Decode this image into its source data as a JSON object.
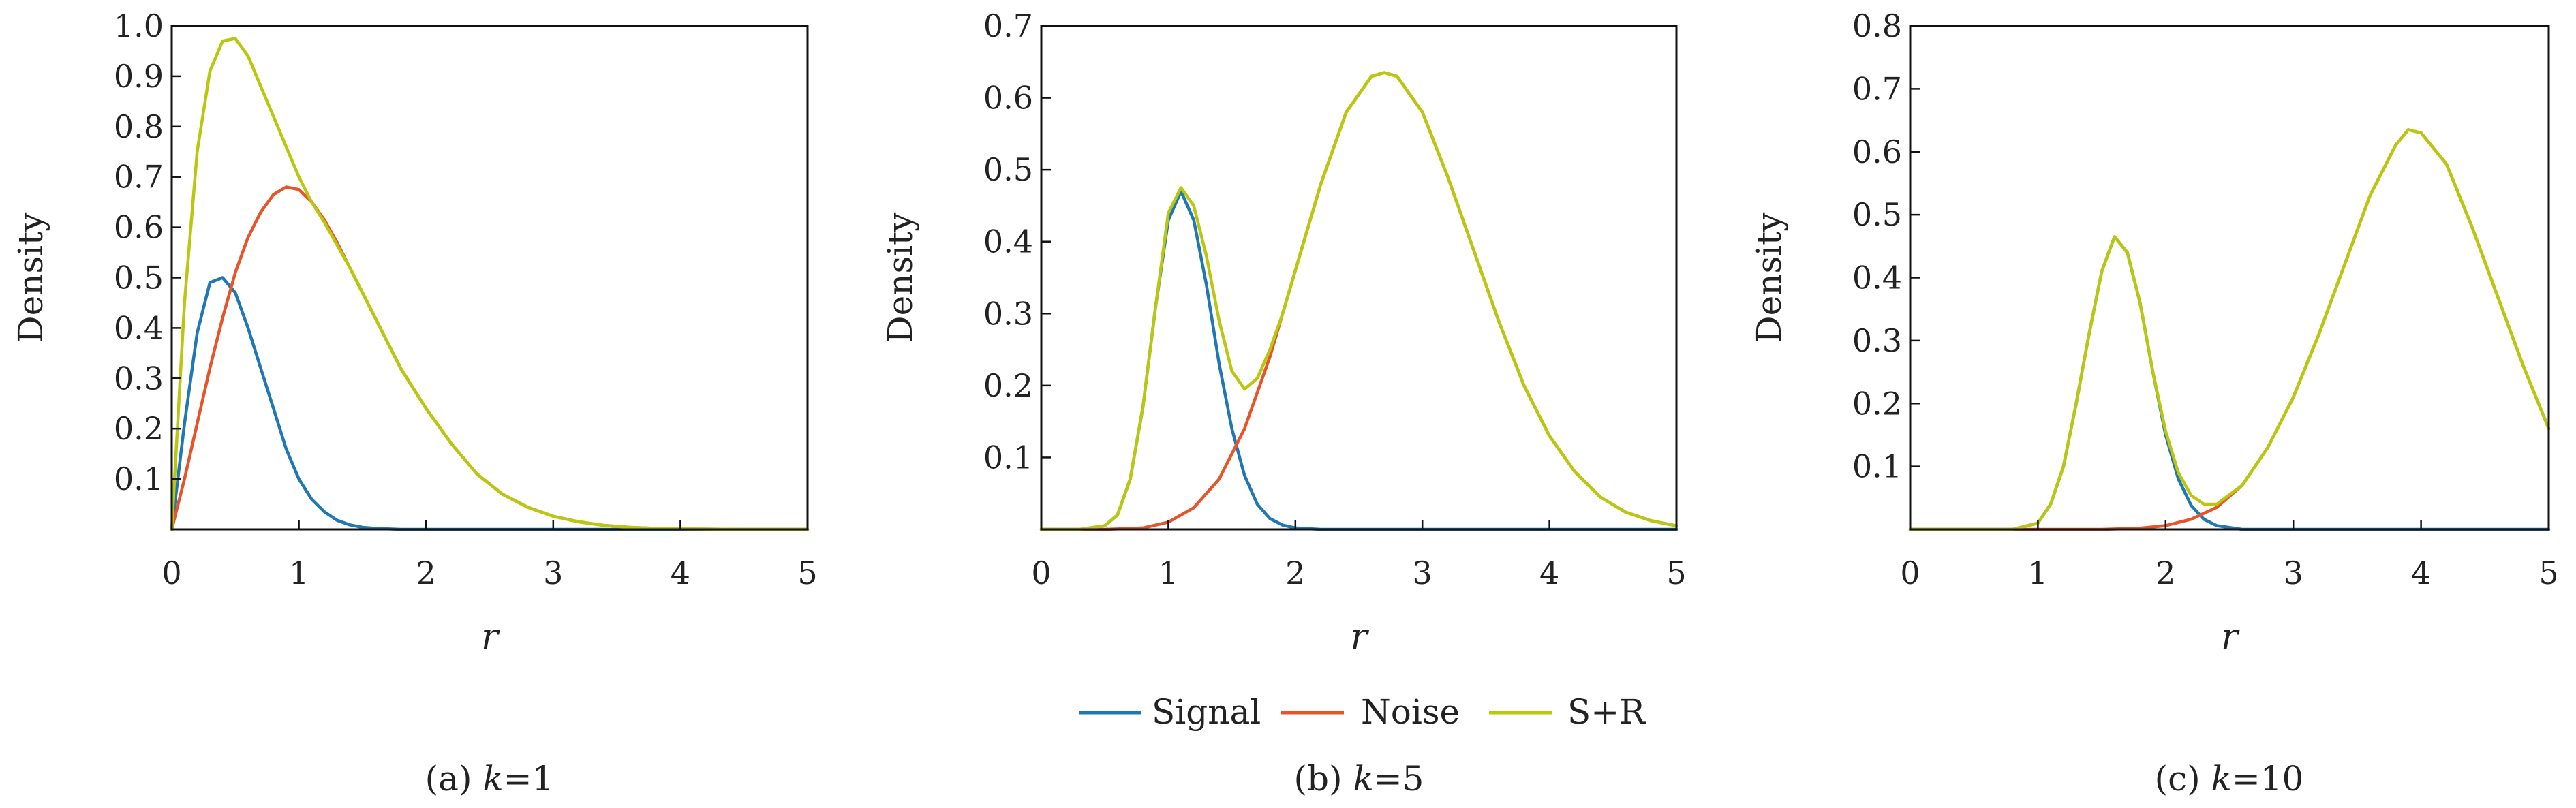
{
  "colors": {
    "signal": "#1f77b4",
    "noise": "#e8542a",
    "sr": "#b9c70f",
    "overlap": "#f0a020"
  },
  "legend": {
    "placement": "bottom-center",
    "entries": [
      {
        "label": "Signal",
        "color": "#1f77b4"
      },
      {
        "label": "Noise",
        "color": "#e8542a"
      },
      {
        "label": "S+R",
        "color": "#b9c70f"
      }
    ]
  },
  "chart_data": [
    {
      "type": "line",
      "caption_prefix": "(a)",
      "caption_var": "k",
      "caption_value": "=1",
      "xlabel": "r",
      "ylabel": "Density",
      "xlim": [
        0,
        5
      ],
      "ylim": [
        0,
        1.0
      ],
      "xticks": [
        "0",
        "1",
        "2",
        "3",
        "4",
        "5"
      ],
      "yticks": [
        "0.1",
        "0.2",
        "0.3",
        "0.4",
        "0.5",
        "0.6",
        "0.7",
        "0.8",
        "0.9",
        "1.0"
      ],
      "grid": false,
      "series": [
        {
          "name": "Signal",
          "x": [
            0,
            0.1,
            0.2,
            0.3,
            0.4,
            0.5,
            0.6,
            0.7,
            0.8,
            0.9,
            1.0,
            1.1,
            1.2,
            1.3,
            1.4,
            1.5,
            1.6,
            1.8,
            2.0,
            2.5,
            3,
            4,
            5
          ],
          "y": [
            0,
            0.21,
            0.39,
            0.49,
            0.5,
            0.47,
            0.4,
            0.32,
            0.24,
            0.16,
            0.1,
            0.06,
            0.035,
            0.018,
            0.009,
            0.004,
            0.002,
            0,
            0,
            0,
            0,
            0,
            0
          ]
        },
        {
          "name": "Noise",
          "x": [
            0,
            0.1,
            0.2,
            0.3,
            0.4,
            0.5,
            0.6,
            0.7,
            0.8,
            0.9,
            1.0,
            1.1,
            1.2,
            1.3,
            1.4,
            1.5,
            1.6,
            1.7,
            1.8,
            1.9,
            2.0,
            2.2,
            2.4,
            2.6,
            2.8,
            3.0,
            3.2,
            3.4,
            3.6,
            3.8,
            4.0,
            4.5,
            5
          ],
          "y": [
            0,
            0.1,
            0.21,
            0.32,
            0.42,
            0.51,
            0.58,
            0.63,
            0.665,
            0.68,
            0.675,
            0.65,
            0.615,
            0.57,
            0.52,
            0.47,
            0.42,
            0.37,
            0.32,
            0.28,
            0.24,
            0.17,
            0.11,
            0.07,
            0.044,
            0.026,
            0.015,
            0.008,
            0.004,
            0.002,
            0.001,
            0,
            0
          ]
        },
        {
          "name": "S+R",
          "x": [
            0,
            0.1,
            0.2,
            0.3,
            0.4,
            0.5,
            0.6,
            0.7,
            0.8,
            0.9,
            1.0,
            1.1,
            1.2,
            1.3,
            1.4,
            1.5,
            1.6,
            1.7,
            1.8,
            1.9,
            2.0,
            2.2,
            2.4,
            2.6,
            2.8,
            3.0,
            3.2,
            3.4,
            3.6,
            3.8,
            4.0,
            4.5,
            5
          ],
          "y": [
            0,
            0.45,
            0.75,
            0.91,
            0.97,
            0.975,
            0.94,
            0.88,
            0.82,
            0.76,
            0.7,
            0.65,
            0.61,
            0.565,
            0.52,
            0.47,
            0.42,
            0.37,
            0.32,
            0.28,
            0.24,
            0.17,
            0.11,
            0.07,
            0.044,
            0.026,
            0.015,
            0.008,
            0.004,
            0.002,
            0.001,
            0,
            0
          ]
        }
      ]
    },
    {
      "type": "line",
      "caption_prefix": "(b)",
      "caption_var": "k",
      "caption_value": "=5",
      "xlabel": "r",
      "ylabel": "Density",
      "xlim": [
        0,
        5
      ],
      "ylim": [
        0,
        0.7
      ],
      "xticks": [
        "0",
        "1",
        "2",
        "3",
        "4",
        "5"
      ],
      "yticks": [
        "0.1",
        "0.2",
        "0.3",
        "0.4",
        "0.5",
        "0.6",
        "0.7"
      ],
      "grid": false,
      "series": [
        {
          "name": "Signal",
          "x": [
            0,
            0.3,
            0.5,
            0.6,
            0.7,
            0.8,
            0.9,
            1.0,
            1.1,
            1.2,
            1.3,
            1.4,
            1.5,
            1.6,
            1.7,
            1.8,
            1.9,
            2.0,
            2.2,
            2.5,
            3,
            4,
            5
          ],
          "y": [
            0,
            0,
            0.005,
            0.02,
            0.07,
            0.17,
            0.31,
            0.43,
            0.47,
            0.43,
            0.34,
            0.23,
            0.14,
            0.075,
            0.035,
            0.015,
            0.006,
            0.002,
            0,
            0,
            0,
            0,
            0
          ]
        },
        {
          "name": "Noise",
          "x": [
            0,
            0.5,
            0.8,
            1.0,
            1.2,
            1.4,
            1.6,
            1.8,
            2.0,
            2.2,
            2.4,
            2.6,
            2.7,
            2.8,
            3.0,
            3.2,
            3.4,
            3.6,
            3.8,
            4.0,
            4.2,
            4.4,
            4.6,
            4.8,
            5.0
          ],
          "y": [
            0,
            0,
            0.002,
            0.01,
            0.03,
            0.07,
            0.14,
            0.24,
            0.36,
            0.48,
            0.58,
            0.63,
            0.635,
            0.63,
            0.58,
            0.49,
            0.39,
            0.29,
            0.2,
            0.13,
            0.08,
            0.045,
            0.024,
            0.012,
            0.005
          ]
        },
        {
          "name": "S+R",
          "x": [
            0,
            0.3,
            0.5,
            0.6,
            0.7,
            0.8,
            0.9,
            1.0,
            1.1,
            1.2,
            1.3,
            1.4,
            1.5,
            1.6,
            1.7,
            1.8,
            1.9,
            2.0,
            2.2,
            2.4,
            2.6,
            2.7,
            2.8,
            3.0,
            3.2,
            3.4,
            3.6,
            3.8,
            4.0,
            4.2,
            4.4,
            4.6,
            4.8,
            5.0
          ],
          "y": [
            0,
            0,
            0.005,
            0.02,
            0.07,
            0.17,
            0.31,
            0.44,
            0.475,
            0.45,
            0.38,
            0.29,
            0.22,
            0.195,
            0.21,
            0.25,
            0.3,
            0.36,
            0.48,
            0.58,
            0.63,
            0.635,
            0.63,
            0.58,
            0.49,
            0.39,
            0.29,
            0.2,
            0.13,
            0.08,
            0.045,
            0.024,
            0.012,
            0.005
          ]
        }
      ]
    },
    {
      "type": "line",
      "caption_prefix": "(c)",
      "caption_var": "k",
      "caption_value": "=10",
      "xlabel": "r",
      "ylabel": "Density",
      "xlim": [
        0,
        5
      ],
      "ylim": [
        0,
        0.8
      ],
      "xticks": [
        "0",
        "1",
        "2",
        "3",
        "4",
        "5"
      ],
      "yticks": [
        "0.1",
        "0.2",
        "0.3",
        "0.4",
        "0.5",
        "0.6",
        "0.7",
        "0.8"
      ],
      "grid": false,
      "series": [
        {
          "name": "Signal",
          "x": [
            0,
            0.8,
            1.0,
            1.1,
            1.2,
            1.3,
            1.4,
            1.5,
            1.6,
            1.7,
            1.8,
            1.9,
            2.0,
            2.1,
            2.2,
            2.3,
            2.4,
            2.6,
            3,
            4,
            5
          ],
          "y": [
            0,
            0,
            0.01,
            0.04,
            0.1,
            0.2,
            0.31,
            0.41,
            0.465,
            0.44,
            0.36,
            0.25,
            0.15,
            0.08,
            0.038,
            0.016,
            0.006,
            0,
            0,
            0,
            0
          ]
        },
        {
          "name": "Noise",
          "x": [
            0,
            1.5,
            1.8,
            2.0,
            2.2,
            2.4,
            2.6,
            2.8,
            3.0,
            3.2,
            3.4,
            3.6,
            3.8,
            3.9,
            4.0,
            4.2,
            4.4,
            4.6,
            4.8,
            5.0
          ],
          "y": [
            0,
            0,
            0.002,
            0.006,
            0.016,
            0.035,
            0.07,
            0.13,
            0.21,
            0.31,
            0.42,
            0.53,
            0.61,
            0.635,
            0.63,
            0.58,
            0.48,
            0.37,
            0.26,
            0.16
          ]
        },
        {
          "name": "S+R",
          "x": [
            0,
            0.8,
            1.0,
            1.1,
            1.2,
            1.3,
            1.4,
            1.5,
            1.6,
            1.7,
            1.8,
            1.9,
            2.0,
            2.1,
            2.2,
            2.3,
            2.4,
            2.6,
            2.8,
            3.0,
            3.2,
            3.4,
            3.6,
            3.8,
            3.9,
            4.0,
            4.2,
            4.4,
            4.6,
            4.8,
            5.0
          ],
          "y": [
            0,
            0,
            0.01,
            0.04,
            0.1,
            0.2,
            0.31,
            0.41,
            0.465,
            0.44,
            0.36,
            0.25,
            0.156,
            0.09,
            0.054,
            0.04,
            0.04,
            0.07,
            0.13,
            0.21,
            0.31,
            0.42,
            0.53,
            0.61,
            0.635,
            0.63,
            0.58,
            0.48,
            0.37,
            0.26,
            0.16
          ]
        }
      ]
    }
  ]
}
